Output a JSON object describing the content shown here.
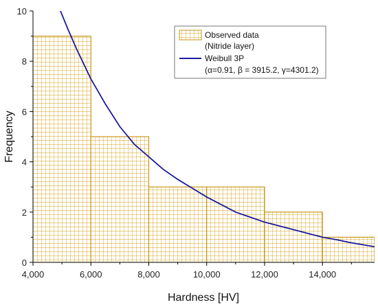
{
  "chart_data": {
    "type": "bar",
    "xlabel": "Hardness [HV]",
    "ylabel": "Frequency",
    "xlim": [
      4000,
      15800
    ],
    "ylim": [
      0,
      10
    ],
    "x_ticks": [
      4000,
      6000,
      8000,
      10000,
      12000,
      14000
    ],
    "x_tick_labels": [
      "4,000",
      "6,000",
      "8,000",
      "10,000",
      "12,000",
      "14,000"
    ],
    "y_ticks": [
      0,
      2,
      4,
      6,
      8,
      10
    ],
    "y_tick_labels": [
      "0",
      "2",
      "4",
      "6",
      "8",
      "10"
    ],
    "grid": false,
    "legend_position": "top-right",
    "colors": {
      "bar_fill": "#ffffff",
      "bar_hatch": "#d4a017",
      "bar_edge": "#c9961a",
      "curve": "#1a1a9c",
      "axis": "#000000"
    },
    "histogram": {
      "name": "Observed data",
      "legend_label_line1": "Observed data",
      "legend_label_line2": "(Nitride layer)",
      "bins": [
        {
          "x0": 4000,
          "x1": 6000,
          "count": 9
        },
        {
          "x0": 6000,
          "x1": 8000,
          "count": 5
        },
        {
          "x0": 8000,
          "x1": 10000,
          "count": 3
        },
        {
          "x0": 10000,
          "x1": 12000,
          "count": 3
        },
        {
          "x0": 12000,
          "x1": 14000,
          "count": 2
        },
        {
          "x0": 14000,
          "x1": 15800,
          "count": 1
        }
      ]
    },
    "curve": {
      "name": "Weibull 3P",
      "legend_label_line1": "Weibull 3P",
      "legend_label_line2": "(α=0.91, β = 3915.2, γ=4301.2)",
      "x": [
        4950,
        5200,
        5500,
        6000,
        6500,
        7000,
        7500,
        8000,
        8500,
        9000,
        9500,
        10000,
        10500,
        11000,
        11500,
        12000,
        12500,
        13000,
        13500,
        14000,
        14500,
        15000,
        15500,
        15800
      ],
      "y": [
        10.0,
        9.3,
        8.5,
        7.3,
        6.3,
        5.4,
        4.7,
        4.2,
        3.7,
        3.3,
        2.95,
        2.6,
        2.3,
        2.0,
        1.8,
        1.6,
        1.45,
        1.3,
        1.15,
        1.0,
        0.9,
        0.78,
        0.68,
        0.62
      ]
    }
  }
}
